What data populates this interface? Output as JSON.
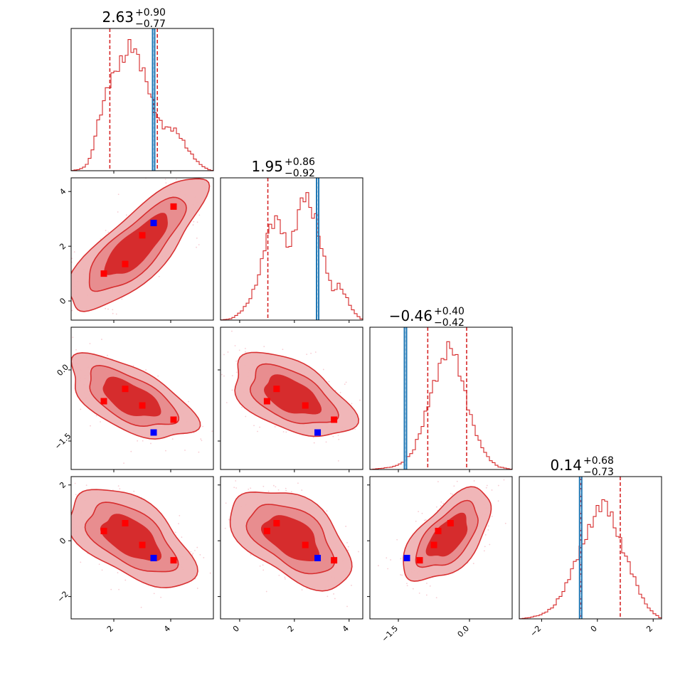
{
  "colors": {
    "contour": "#d62728",
    "contour_fill_outer": "#f0b3b5",
    "contour_fill_mid": "#e88b8d",
    "contour_fill_inner": "#d62728",
    "truth_line": "#1f77b4",
    "marker_red": "#ff0000",
    "marker_blue": "#0000ff",
    "quantile_line": "#d62728"
  },
  "chart_data": {
    "type": "corner",
    "parameters": [
      {
        "title_value": "2.63",
        "title_plus": "+0.90",
        "title_minus": "−0.77",
        "range": [
          0.5,
          5.5
        ],
        "ticks": [
          2,
          4
        ],
        "tick_labels": [
          "2",
          "4"
        ],
        "median": 2.63,
        "q_low": 1.86,
        "q_high": 3.53,
        "truth": 3.4,
        "hist_shape": [
          [
            0.5,
            0
          ],
          [
            0.8,
            0.01
          ],
          [
            1.0,
            0.03
          ],
          [
            1.2,
            0.1
          ],
          [
            1.3,
            0.2
          ],
          [
            1.4,
            0.3
          ],
          [
            1.6,
            0.45
          ],
          [
            1.8,
            0.6
          ],
          [
            2.0,
            0.68
          ],
          [
            2.2,
            0.75
          ],
          [
            2.4,
            0.8
          ],
          [
            2.6,
            0.9
          ],
          [
            2.8,
            0.82
          ],
          [
            3.0,
            0.72
          ],
          [
            3.2,
            0.6
          ],
          [
            3.4,
            0.45
          ],
          [
            3.6,
            0.35
          ],
          [
            3.8,
            0.3
          ],
          [
            4.0,
            0.3
          ],
          [
            4.2,
            0.28
          ],
          [
            4.4,
            0.22
          ],
          [
            4.6,
            0.15
          ],
          [
            4.8,
            0.1
          ],
          [
            5.0,
            0.05
          ],
          [
            5.3,
            0.01
          ],
          [
            5.5,
            0
          ]
        ]
      },
      {
        "title_value": "1.95",
        "title_plus": "+0.86",
        "title_minus": "−0.92",
        "range": [
          -0.7,
          4.5
        ],
        "ticks": [
          0,
          2,
          4
        ],
        "tick_labels": [
          "0",
          "2",
          "4"
        ],
        "median": 1.95,
        "q_low": 1.03,
        "q_high": 2.81,
        "truth": 2.85,
        "hist_shape": [
          [
            -0.7,
            0
          ],
          [
            -0.3,
            0.01
          ],
          [
            0.0,
            0.05
          ],
          [
            0.3,
            0.12
          ],
          [
            0.6,
            0.25
          ],
          [
            0.8,
            0.4
          ],
          [
            1.0,
            0.6
          ],
          [
            1.2,
            0.68
          ],
          [
            1.4,
            0.72
          ],
          [
            1.6,
            0.6
          ],
          [
            1.8,
            0.5
          ],
          [
            2.0,
            0.62
          ],
          [
            2.2,
            0.8
          ],
          [
            2.4,
            0.9
          ],
          [
            2.6,
            0.78
          ],
          [
            2.8,
            0.7
          ],
          [
            3.0,
            0.5
          ],
          [
            3.2,
            0.35
          ],
          [
            3.4,
            0.2
          ],
          [
            3.6,
            0.25
          ],
          [
            3.8,
            0.2
          ],
          [
            4.0,
            0.12
          ],
          [
            4.2,
            0.05
          ],
          [
            4.5,
            0
          ]
        ]
      },
      {
        "title_value": "−0.46",
        "title_plus": "+0.40",
        "title_minus": "−0.42",
        "range": [
          -2.1,
          0.9
        ],
        "ticks": [
          -1.5,
          0.0
        ],
        "tick_labels": [
          "−1.5",
          "0.0"
        ],
        "median": -0.46,
        "q_low": -0.88,
        "q_high": -0.06,
        "truth": -1.35,
        "hist_shape": [
          [
            -2.1,
            0
          ],
          [
            -1.8,
            0.01
          ],
          [
            -1.6,
            0.02
          ],
          [
            -1.4,
            0.05
          ],
          [
            -1.2,
            0.12
          ],
          [
            -1.0,
            0.3
          ],
          [
            -0.8,
            0.55
          ],
          [
            -0.6,
            0.75
          ],
          [
            -0.5,
            0.82
          ],
          [
            -0.4,
            0.88
          ],
          [
            -0.3,
            0.8
          ],
          [
            -0.2,
            0.68
          ],
          [
            -0.1,
            0.55
          ],
          [
            0.0,
            0.4
          ],
          [
            0.2,
            0.2
          ],
          [
            0.4,
            0.08
          ],
          [
            0.6,
            0.02
          ],
          [
            0.9,
            0
          ]
        ]
      },
      {
        "title_value": "0.14",
        "title_plus": "+0.68",
        "title_minus": "−0.73",
        "range": [
          -2.8,
          2.3
        ],
        "ticks": [
          -2,
          0,
          2
        ],
        "tick_labels": [
          "−2",
          "0",
          "2"
        ],
        "median": 0.14,
        "q_low": -0.59,
        "q_high": 0.82,
        "truth": -0.6,
        "hist_shape": [
          [
            -2.8,
            0
          ],
          [
            -2.4,
            0.01
          ],
          [
            -2.0,
            0.03
          ],
          [
            -1.6,
            0.08
          ],
          [
            -1.2,
            0.2
          ],
          [
            -0.8,
            0.4
          ],
          [
            -0.4,
            0.58
          ],
          [
            -0.1,
            0.72
          ],
          [
            0.1,
            0.8
          ],
          [
            0.3,
            0.82
          ],
          [
            0.5,
            0.72
          ],
          [
            0.8,
            0.55
          ],
          [
            1.0,
            0.45
          ],
          [
            1.3,
            0.3
          ],
          [
            1.6,
            0.15
          ],
          [
            1.9,
            0.06
          ],
          [
            2.3,
            0
          ]
        ]
      }
    ],
    "red_markers": [
      [
        1.65,
        1.0,
        -0.66,
        0.35
      ],
      [
        2.4,
        1.35,
        -0.4,
        0.63
      ],
      [
        3.0,
        2.4,
        -0.75,
        -0.15
      ],
      [
        4.1,
        3.45,
        -1.05,
        -0.7
      ]
    ],
    "blue_marker": [
      3.4,
      2.85,
      -1.32,
      -0.62
    ],
    "pair_contours": [
      {
        "row": 1,
        "col": 0,
        "center": [
          2.8,
          2.0
        ],
        "sx": 1.1,
        "sy": 1.1,
        "rho": 0.8
      },
      {
        "row": 2,
        "col": 0,
        "center": [
          2.6,
          -0.6
        ],
        "sx": 1.0,
        "sy": 0.4,
        "rho": -0.6
      },
      {
        "row": 2,
        "col": 1,
        "center": [
          1.9,
          -0.55
        ],
        "sx": 1.0,
        "sy": 0.4,
        "rho": -0.5
      },
      {
        "row": 3,
        "col": 0,
        "center": [
          2.6,
          0.1
        ],
        "sx": 1.0,
        "sy": 0.8,
        "rho": -0.55
      },
      {
        "row": 3,
        "col": 1,
        "center": [
          1.9,
          0.1
        ],
        "sx": 1.0,
        "sy": 0.8,
        "rho": -0.5
      },
      {
        "row": 3,
        "col": 2,
        "center": [
          -0.45,
          0.15
        ],
        "sx": 0.42,
        "sy": 0.75,
        "rho": 0.6
      }
    ]
  }
}
